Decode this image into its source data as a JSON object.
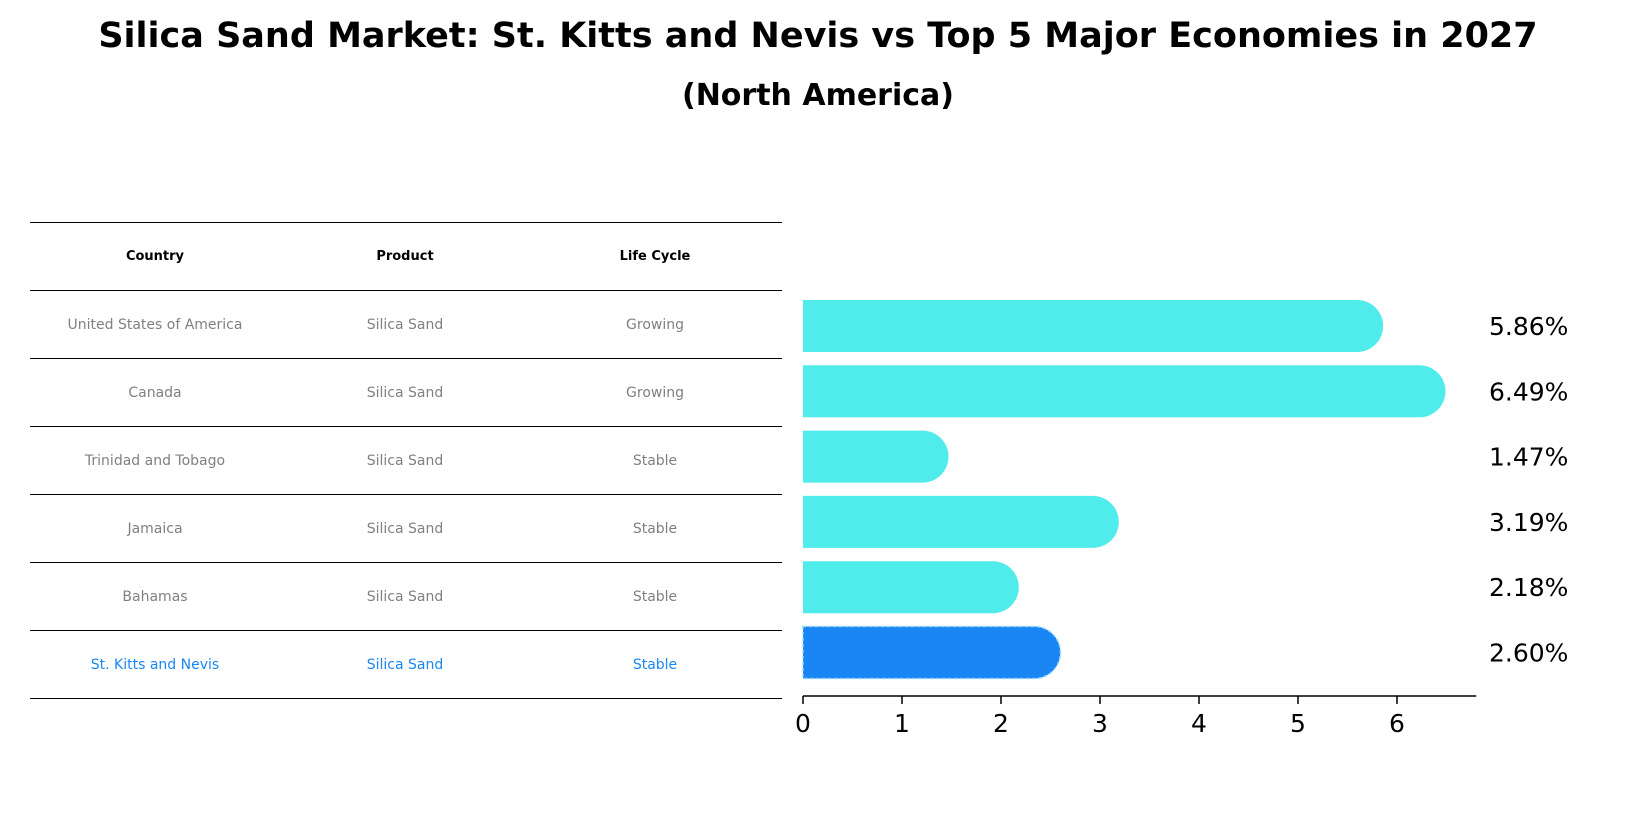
{
  "title": "Silica Sand Market: St. Kitts and Nevis vs Top 5 Major Economies in 2027",
  "subtitle": "(North America)",
  "table": {
    "headers": [
      "Country",
      "Product",
      "Life Cycle"
    ],
    "rows": [
      [
        "United States of America",
        "Silica Sand",
        "Growing"
      ],
      [
        "Canada",
        "Silica Sand",
        "Growing"
      ],
      [
        "Trinidad and Tobago",
        "Silica Sand",
        "Stable"
      ],
      [
        "Jamaica",
        "Silica Sand",
        "Stable"
      ],
      [
        "Bahamas",
        "Silica Sand",
        "Stable"
      ],
      [
        "St. Kitts and Nevis",
        "Silica Sand",
        "Stable"
      ]
    ],
    "highlight_row": 5
  },
  "colors": {
    "default_bar": "#50EBEB",
    "highlight_bar": "#1A86F4",
    "highlight_text": "#1A86F4",
    "muted_text": "#808080"
  },
  "chart_data": {
    "type": "bar",
    "orientation": "horizontal",
    "categories": [
      "United States of America",
      "Canada",
      "Trinidad and Tobago",
      "Jamaica",
      "Bahamas",
      "St. Kitts and Nevis"
    ],
    "values": [
      5.86,
      6.49,
      1.47,
      3.19,
      2.18,
      2.6
    ],
    "value_labels": [
      "5.86%",
      "6.49%",
      "1.47%",
      "3.19%",
      "2.18%",
      "2.60%"
    ],
    "xlim": [
      0,
      6.8
    ],
    "xticks": [
      0,
      1,
      2,
      3,
      4,
      5,
      6
    ],
    "highlight_index": 5,
    "title": "Silica Sand Market: St. Kitts and Nevis vs Top 5 Major Economies in 2027",
    "xlabel": "",
    "ylabel": ""
  }
}
